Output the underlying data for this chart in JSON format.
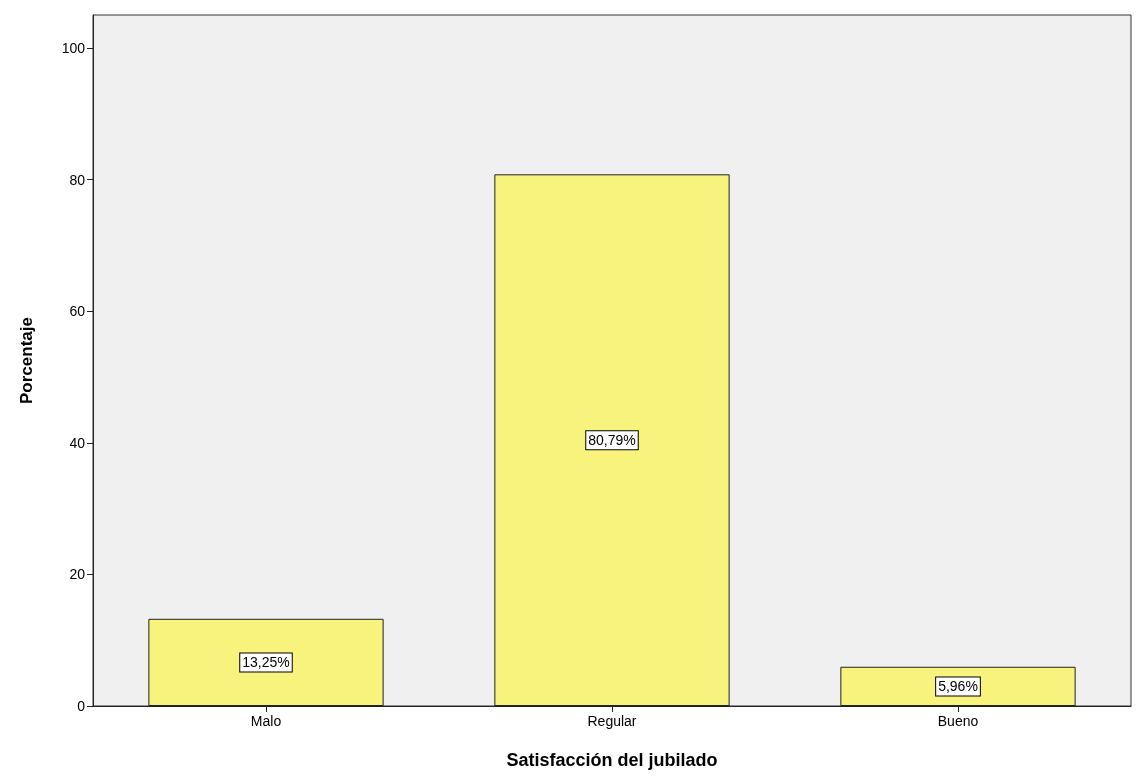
{
  "chart_data": {
    "type": "bar",
    "xlabel": "Satisfacción del jubilado",
    "ylabel": "Porcentaje",
    "categories": [
      "Malo",
      "Regular",
      "Bueno"
    ],
    "values": [
      13.25,
      80.79,
      5.96
    ],
    "value_labels": [
      "13,25%",
      "80,79%",
      "5,96%"
    ],
    "color": "#f7f37c",
    "ylim": [
      0,
      105
    ],
    "yticks": [
      0,
      20,
      40,
      60,
      80,
      100
    ],
    "grid": false
  }
}
